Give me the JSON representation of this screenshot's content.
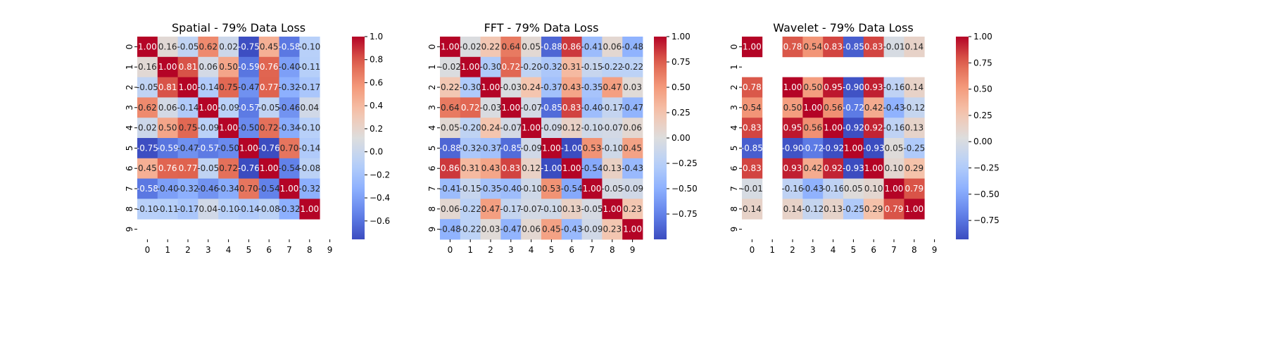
{
  "chart_data": [
    {
      "type": "heatmap",
      "title": "Spatial - 79% Data Loss",
      "x_ticks": [
        "0",
        "1",
        "2",
        "3",
        "4",
        "5",
        "6",
        "7",
        "8",
        "9"
      ],
      "y_ticks": [
        "0",
        "1",
        "2",
        "3",
        "4",
        "5",
        "6",
        "7",
        "8",
        "9"
      ],
      "colormap": "coolwarm",
      "vmin": -0.76,
      "vmax": 1.0,
      "colorbar_ticks": [
        -0.6,
        -0.4,
        -0.2,
        0.0,
        0.2,
        0.4,
        0.6,
        0.8,
        1.0
      ],
      "colorbar_labels": [
        "−0.6",
        "−0.4",
        "−0.2",
        "0.0",
        "0.2",
        "0.4",
        "0.6",
        "0.8",
        "1.0"
      ],
      "values": [
        [
          1.0,
          0.16,
          -0.05,
          0.62,
          0.02,
          -0.75,
          0.45,
          -0.58,
          -0.1,
          null
        ],
        [
          0.16,
          1.0,
          0.81,
          0.06,
          0.5,
          -0.59,
          0.76,
          -0.4,
          -0.11,
          null
        ],
        [
          -0.05,
          0.81,
          1.0,
          -0.14,
          0.75,
          -0.47,
          0.77,
          -0.32,
          -0.17,
          null
        ],
        [
          0.62,
          0.06,
          -0.14,
          1.0,
          -0.09,
          -0.57,
          -0.05,
          -0.46,
          0.04,
          null
        ],
        [
          0.02,
          0.5,
          0.75,
          -0.09,
          1.0,
          -0.5,
          0.72,
          -0.34,
          -0.1,
          null
        ],
        [
          -0.75,
          -0.59,
          -0.47,
          -0.57,
          -0.5,
          1.0,
          -0.76,
          0.7,
          -0.14,
          null
        ],
        [
          0.45,
          0.76,
          0.77,
          -0.05,
          0.72,
          -0.76,
          1.0,
          -0.54,
          -0.08,
          null
        ],
        [
          -0.58,
          -0.4,
          -0.32,
          -0.46,
          -0.34,
          0.7,
          -0.54,
          1.0,
          -0.32,
          null
        ],
        [
          -0.1,
          -0.11,
          -0.17,
          0.04,
          -0.1,
          -0.14,
          -0.08,
          -0.32,
          1.0,
          null
        ],
        [
          null,
          null,
          null,
          null,
          null,
          null,
          null,
          null,
          null,
          null
        ]
      ]
    },
    {
      "type": "heatmap",
      "title": "FFT - 79% Data Loss",
      "x_ticks": [
        "0",
        "1",
        "2",
        "3",
        "4",
        "5",
        "6",
        "7",
        "8",
        "9"
      ],
      "y_ticks": [
        "0",
        "1",
        "2",
        "3",
        "4",
        "5",
        "6",
        "7",
        "8",
        "9"
      ],
      "colormap": "coolwarm",
      "vmin": -1.0,
      "vmax": 1.0,
      "colorbar_ticks": [
        -0.75,
        -0.5,
        -0.25,
        0.0,
        0.25,
        0.5,
        0.75,
        1.0
      ],
      "colorbar_labels": [
        "−0.75",
        "−0.50",
        "−0.25",
        "0.00",
        "0.25",
        "0.50",
        "0.75",
        "1.00"
      ],
      "values": [
        [
          1.0,
          -0.02,
          0.22,
          0.64,
          0.05,
          -0.88,
          0.86,
          -0.41,
          0.06,
          -0.48
        ],
        [
          -0.02,
          1.0,
          -0.3,
          0.72,
          -0.2,
          -0.32,
          0.31,
          -0.15,
          -0.22,
          -0.22
        ],
        [
          0.22,
          -0.3,
          1.0,
          -0.03,
          0.24,
          -0.37,
          0.43,
          -0.35,
          0.47,
          0.03
        ],
        [
          0.64,
          0.72,
          -0.03,
          1.0,
          -0.07,
          -0.85,
          0.83,
          -0.4,
          -0.17,
          -0.47
        ],
        [
          0.05,
          -0.2,
          0.24,
          -0.07,
          1.0,
          -0.09,
          0.12,
          -0.1,
          -0.07,
          0.06
        ],
        [
          -0.88,
          -0.32,
          -0.37,
          -0.85,
          -0.09,
          1.0,
          -1.0,
          0.53,
          -0.1,
          0.45
        ],
        [
          0.86,
          0.31,
          0.43,
          0.83,
          0.12,
          -1.0,
          1.0,
          -0.54,
          0.13,
          -0.43
        ],
        [
          -0.41,
          -0.15,
          -0.35,
          -0.4,
          -0.1,
          0.53,
          -0.54,
          1.0,
          -0.05,
          -0.09
        ],
        [
          0.06,
          -0.22,
          0.47,
          -0.17,
          -0.07,
          -0.1,
          0.13,
          -0.05,
          1.0,
          0.23
        ],
        [
          -0.48,
          -0.22,
          0.03,
          -0.47,
          0.06,
          0.45,
          -0.43,
          -0.09,
          0.23,
          1.0
        ]
      ]
    },
    {
      "type": "heatmap",
      "title": "Wavelet - 79% Data Loss",
      "x_ticks": [
        "0",
        "1",
        "2",
        "3",
        "4",
        "5",
        "6",
        "7",
        "8",
        "9"
      ],
      "y_ticks": [
        "0",
        "1",
        "2",
        "3",
        "4",
        "5",
        "6",
        "7",
        "8",
        "9"
      ],
      "colormap": "coolwarm",
      "vmin": -0.93,
      "vmax": 1.0,
      "colorbar_ticks": [
        -0.75,
        -0.5,
        -0.25,
        0.0,
        0.25,
        0.5,
        0.75,
        1.0
      ],
      "colorbar_labels": [
        "−0.75",
        "−0.50",
        "−0.25",
        "0.00",
        "0.25",
        "0.50",
        "0.75",
        "1.00"
      ],
      "values": [
        [
          1.0,
          null,
          0.78,
          0.54,
          0.83,
          -0.85,
          0.83,
          -0.01,
          0.14,
          null
        ],
        [
          null,
          null,
          null,
          null,
          null,
          null,
          null,
          null,
          null,
          null
        ],
        [
          0.78,
          null,
          1.0,
          0.5,
          0.95,
          -0.9,
          0.93,
          -0.16,
          0.14,
          null
        ],
        [
          0.54,
          null,
          0.5,
          1.0,
          0.56,
          -0.72,
          0.42,
          -0.43,
          -0.12,
          null
        ],
        [
          0.83,
          null,
          0.95,
          0.56,
          1.0,
          -0.92,
          0.92,
          -0.16,
          0.13,
          null
        ],
        [
          -0.85,
          null,
          -0.9,
          -0.72,
          -0.92,
          1.0,
          -0.93,
          0.05,
          -0.25,
          null
        ],
        [
          0.83,
          null,
          0.93,
          0.42,
          0.92,
          -0.93,
          1.0,
          0.1,
          0.29,
          null
        ],
        [
          -0.01,
          null,
          -0.16,
          -0.43,
          -0.16,
          0.05,
          0.1,
          1.0,
          0.79,
          null
        ],
        [
          0.14,
          null,
          0.14,
          -0.12,
          0.13,
          -0.25,
          0.29,
          0.79,
          1.0,
          null
        ],
        [
          null,
          null,
          null,
          null,
          null,
          null,
          null,
          null,
          null,
          null
        ]
      ]
    }
  ]
}
